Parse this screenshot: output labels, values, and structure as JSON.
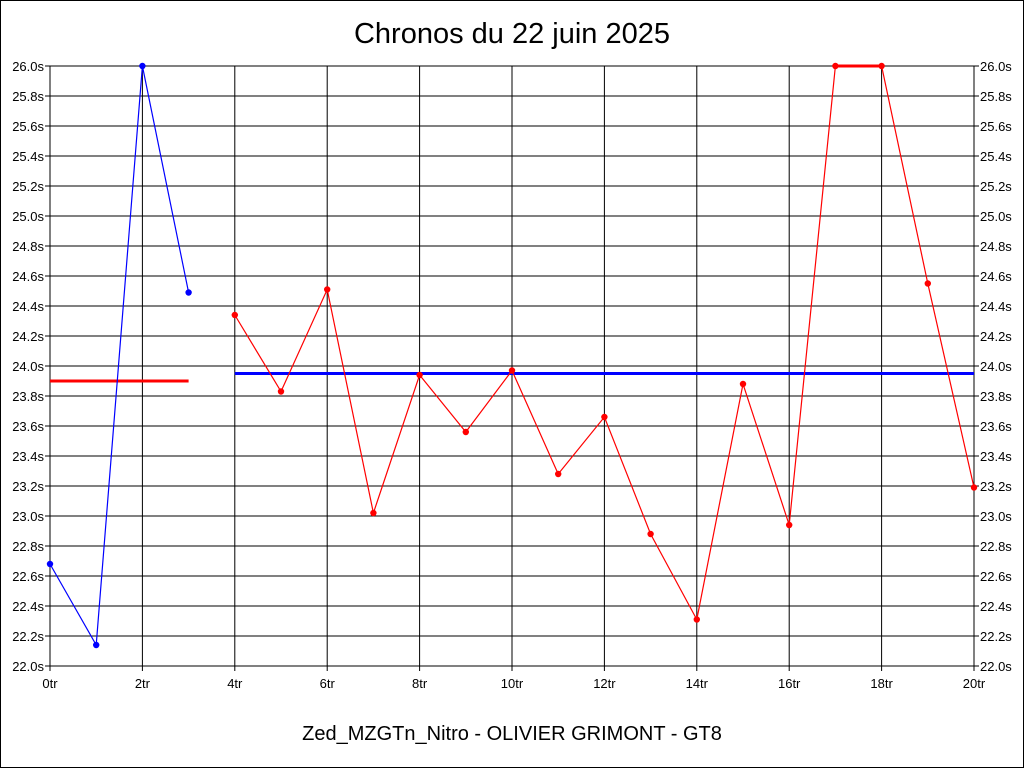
{
  "chart_data": {
    "type": "line",
    "title": "Chronos du 22 juin 2025",
    "subtitle": "Zed_MZGTn_Nitro - OLIVIER GRIMONT - GT8",
    "xlim": [
      0,
      20
    ],
    "ylim": [
      22.0,
      26.0
    ],
    "x_ticks": [
      0,
      2,
      4,
      6,
      8,
      10,
      12,
      14,
      16,
      18,
      20
    ],
    "x_tick_labels": [
      "0tr",
      "2tr",
      "4tr",
      "6tr",
      "8tr",
      "10tr",
      "12tr",
      "14tr",
      "16tr",
      "18tr",
      "20tr"
    ],
    "y_ticks": [
      22.0,
      22.2,
      22.4,
      22.6,
      22.8,
      23.0,
      23.2,
      23.4,
      23.6,
      23.8,
      24.0,
      24.2,
      24.4,
      24.6,
      24.8,
      25.0,
      25.2,
      25.4,
      25.6,
      25.8,
      26.0
    ],
    "y_tick_labels": [
      "22.0s",
      "22.2s",
      "22.4s",
      "22.6s",
      "22.8s",
      "23.0s",
      "23.2s",
      "23.4s",
      "23.6s",
      "23.8s",
      "24.0s",
      "24.2s",
      "24.4s",
      "24.6s",
      "24.8s",
      "25.0s",
      "25.2s",
      "25.4s",
      "25.6s",
      "25.8s",
      "26.0s"
    ],
    "grid": true,
    "series": [
      {
        "color": "#0000ff",
        "x": [
          0,
          1,
          2,
          3
        ],
        "y": [
          22.68,
          22.14,
          26.0,
          24.49
        ]
      },
      {
        "color": "#ff0000",
        "x": [
          4,
          5,
          6,
          7,
          8,
          9,
          10,
          11,
          12,
          13,
          14,
          15,
          16,
          17,
          18,
          19,
          20
        ],
        "y": [
          24.34,
          23.83,
          24.51,
          23.02,
          23.94,
          23.56,
          23.97,
          23.28,
          23.66,
          22.88,
          22.31,
          23.88,
          22.94,
          26.0,
          26.0,
          24.55,
          23.19
        ]
      }
    ],
    "reference_lines": [
      {
        "color": "#ff0000",
        "y": 23.9,
        "x_start": 0,
        "x_end": 3
      },
      {
        "color": "#0000ff",
        "y": 23.95,
        "x_start": 4,
        "x_end": 20
      }
    ]
  }
}
